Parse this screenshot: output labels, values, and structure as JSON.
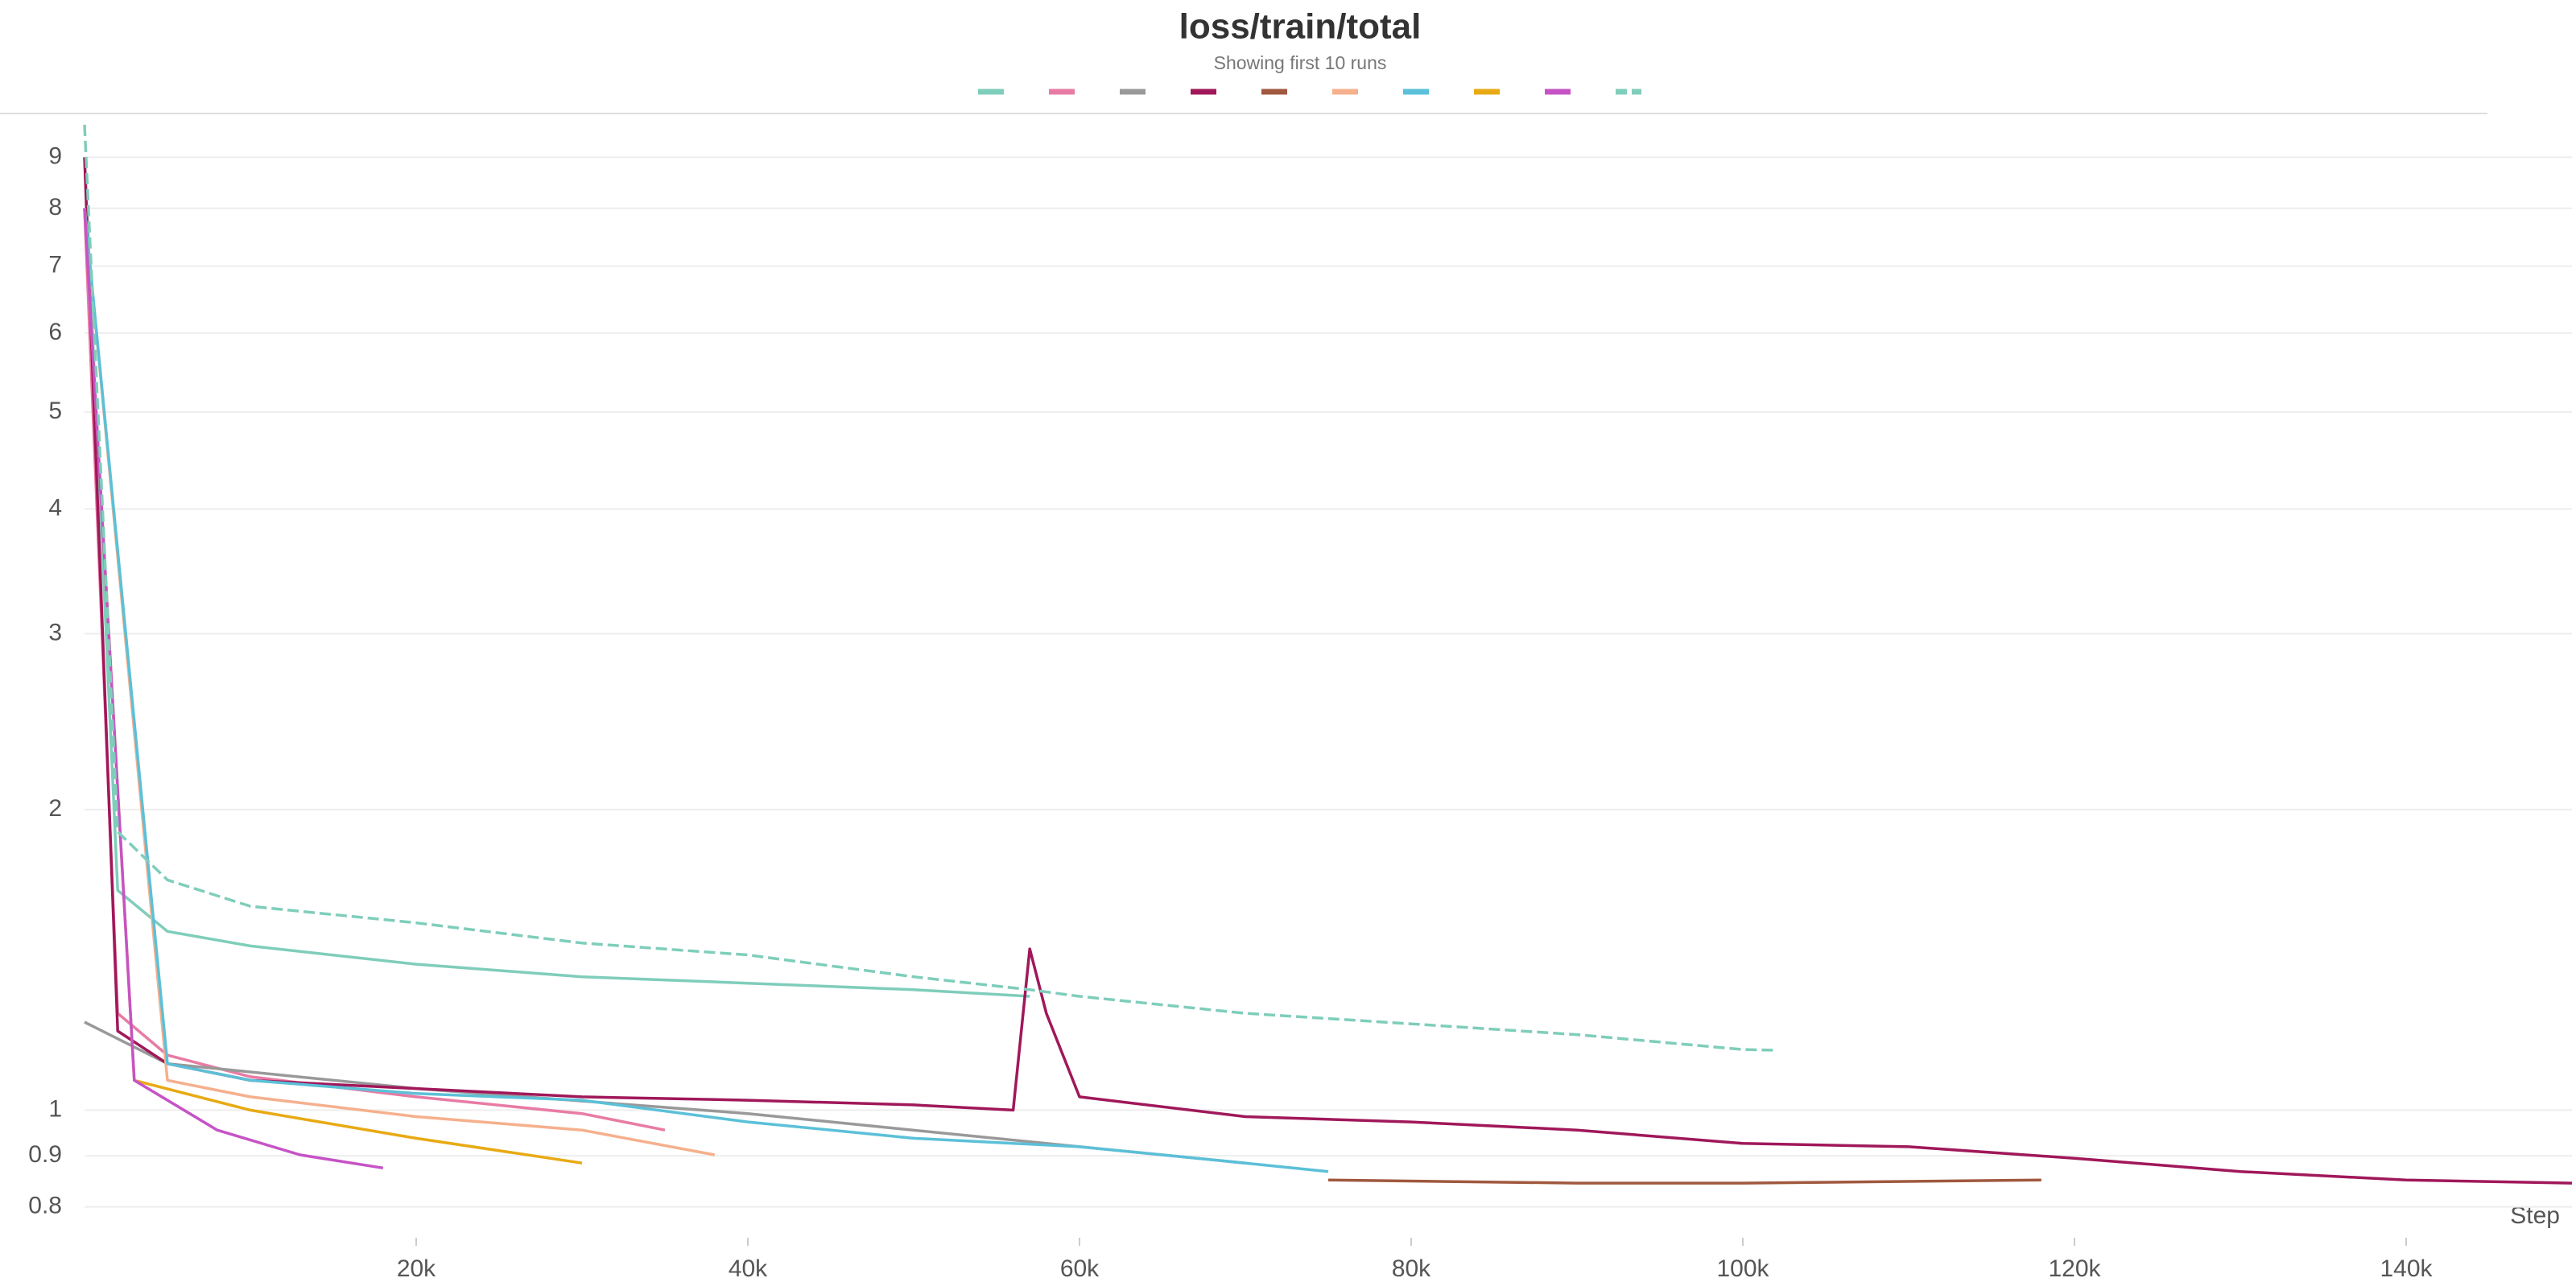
{
  "chart_data": {
    "type": "line",
    "title": "loss/train/total",
    "subtitle": "Showing first 10 runs",
    "x_label": "Step",
    "log_y": true,
    "grid": true,
    "xlim": [
      0,
      150000
    ],
    "ylim": [
      0.745,
      9.7
    ],
    "xticks": [
      {
        "value": 20000,
        "label": "20k"
      },
      {
        "value": 40000,
        "label": "40k"
      },
      {
        "value": 60000,
        "label": "60k"
      },
      {
        "value": 80000,
        "label": "80k"
      },
      {
        "value": 100000,
        "label": "100k"
      },
      {
        "value": 120000,
        "label": "120k"
      },
      {
        "value": 140000,
        "label": "140k"
      }
    ],
    "yticks": [
      0.8,
      0.9,
      1,
      2,
      3,
      4,
      5,
      6,
      7,
      8,
      9
    ],
    "series": [
      {
        "color": "#7fcdbb",
        "x": [
          0,
          2000,
          5000,
          10000,
          20000,
          30000,
          40000,
          50000,
          57000
        ],
        "values": [
          9,
          1.66,
          1.51,
          1.46,
          1.4,
          1.36,
          1.34,
          1.32,
          1.3
        ]
      },
      {
        "color": "#e87ba4",
        "x": [
          0,
          2000,
          5000,
          10000,
          20000,
          30000,
          35000
        ],
        "values": [
          8,
          1.25,
          1.135,
          1.08,
          1.031,
          0.992,
          0.955
        ]
      },
      {
        "color": "#999999",
        "x": [
          0,
          5000,
          20000,
          40000,
          60000,
          70000
        ],
        "values": [
          1.225,
          1.113,
          1.051,
          0.992,
          0.919,
          0.885
        ]
      },
      {
        "color": "#a0185a",
        "x": [
          0,
          2000,
          5000,
          10000,
          20000,
          30000,
          40000,
          50000,
          56000,
          57000,
          58000,
          60000,
          70000,
          80000,
          90000,
          100000,
          110000,
          120000,
          130000,
          140000,
          150000
        ],
        "values": [
          9,
          1.2,
          1.113,
          1.071,
          1.051,
          1.031,
          1.023,
          1.012,
          1,
          1.45,
          1.25,
          1.031,
          0.985,
          0.973,
          0.955,
          0.926,
          0.919,
          0.895,
          0.868,
          0.851,
          0.845
        ]
      },
      {
        "color": "#a0583e",
        "x": [
          75000,
          90000,
          100000,
          118000
        ],
        "values": [
          0.851,
          0.845,
          0.845,
          0.851
        ]
      },
      {
        "color": "#f5b08d",
        "x": [
          0,
          5000,
          10000,
          20000,
          30000,
          38000
        ],
        "values": [
          8,
          1.071,
          1.031,
          0.985,
          0.955,
          0.902
        ]
      },
      {
        "color": "#5bc0d8",
        "x": [
          0,
          5000,
          10000,
          20000,
          30000,
          40000,
          50000,
          60000,
          70000,
          75000
        ],
        "values": [
          8,
          1.113,
          1.071,
          1.039,
          1.023,
          0.973,
          0.937,
          0.919,
          0.885,
          0.868
        ]
      },
      {
        "color": "#e8aa14",
        "x": [
          0,
          3000,
          10000,
          20000,
          30000
        ],
        "values": [
          8,
          1.071,
          1,
          0.937,
          0.885
        ]
      },
      {
        "color": "#c653c6",
        "x": [
          0,
          3000,
          8000,
          13000,
          18000
        ],
        "values": [
          8,
          1.071,
          0.955,
          0.902,
          0.875
        ]
      },
      {
        "color": "#7fcdbb",
        "dashed": true,
        "x": [
          0,
          2000,
          5000,
          10000,
          20000,
          30000,
          40000,
          50000,
          57000,
          60000,
          70000,
          80000,
          90000,
          100000,
          102000
        ],
        "values": [
          9.7,
          1.9,
          1.7,
          1.6,
          1.54,
          1.47,
          1.43,
          1.36,
          1.32,
          1.3,
          1.25,
          1.22,
          1.19,
          1.15,
          1.148
        ]
      }
    ]
  }
}
